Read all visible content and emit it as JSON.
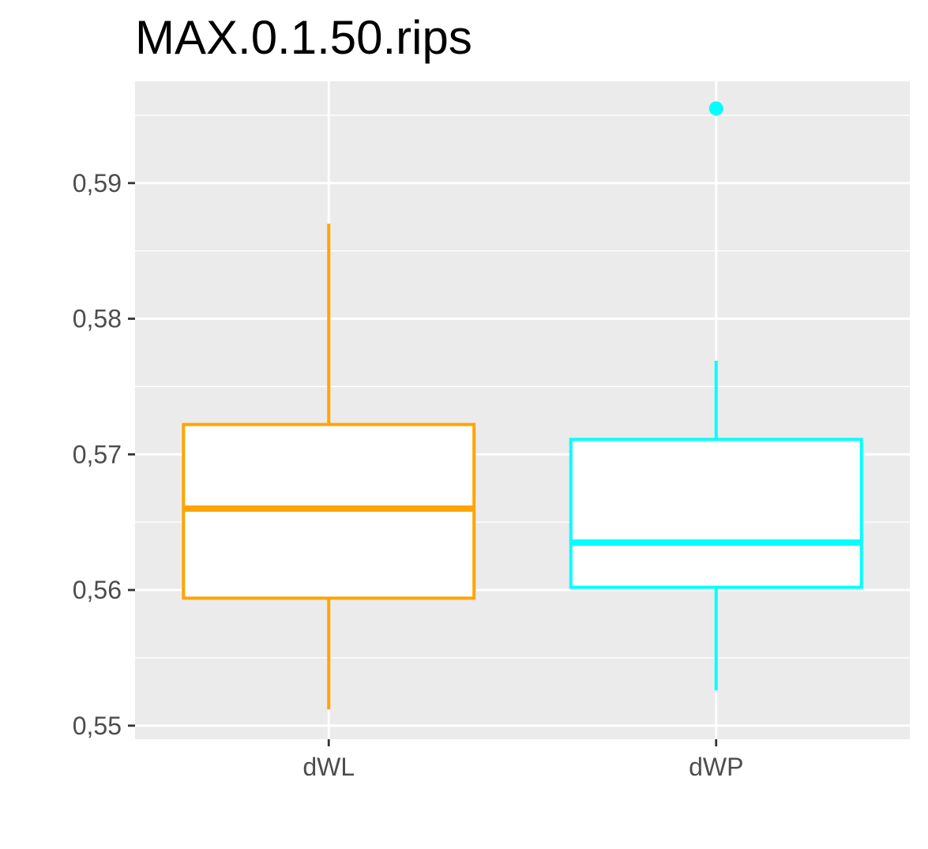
{
  "chart_data": {
    "type": "boxplot",
    "title": "MAX.0.1.50.rips",
    "xlabel": "",
    "ylabel": "",
    "categories": [
      "dWL",
      "dWP"
    ],
    "ylim": [
      0.549,
      0.5975
    ],
    "y_ticks": [
      {
        "value": 0.55,
        "label": "0,55"
      },
      {
        "value": 0.56,
        "label": "0,56"
      },
      {
        "value": 0.57,
        "label": "0,57"
      },
      {
        "value": 0.58,
        "label": "0,58"
      },
      {
        "value": 0.59,
        "label": "0,59"
      }
    ],
    "y_minor_ticks": [
      0.555,
      0.565,
      0.575,
      0.585,
      0.595
    ],
    "grid": true,
    "series": [
      {
        "category": "dWL",
        "color": "#FFA500",
        "whisker_low": 0.5512,
        "q1": 0.5594,
        "median": 0.566,
        "q3": 0.5722,
        "whisker_high": 0.587,
        "outliers": []
      },
      {
        "category": "dWP",
        "color": "#00FFFF",
        "whisker_low": 0.5526,
        "q1": 0.5602,
        "median": 0.5635,
        "q3": 0.5711,
        "whisker_high": 0.5769,
        "outliers": [
          0.5955
        ]
      }
    ]
  }
}
